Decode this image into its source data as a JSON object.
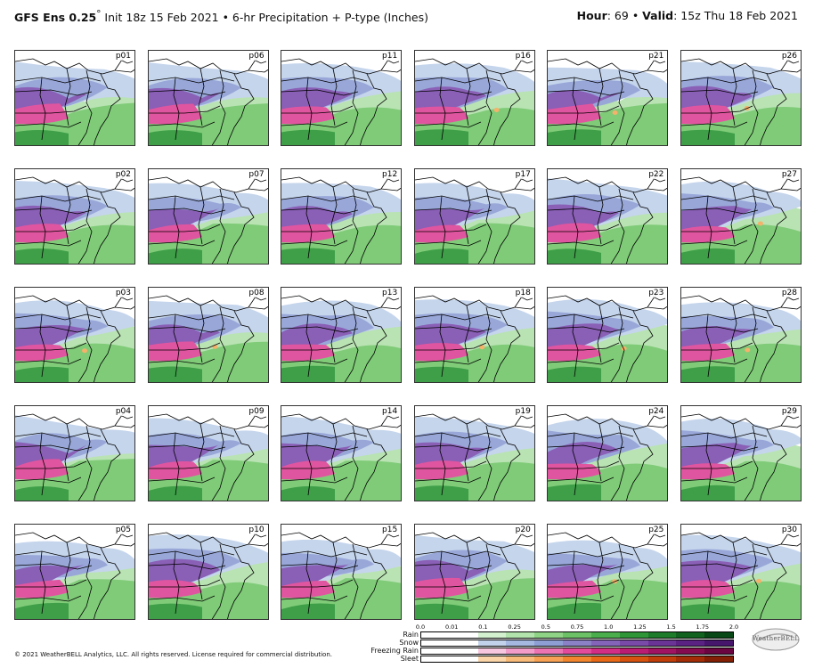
{
  "header": {
    "model": "GFS Ens 0.25",
    "degree": "°",
    "subtitle": " Init 18z 15 Feb 2021 • 6-hr Precipitation + P-type (Inches)",
    "hour_label": "Hour",
    "hour_value": ": 69 • ",
    "valid_label": "Valid",
    "valid_value": ": 15z Thu 18 Feb 2021"
  },
  "members": [
    [
      "p01",
      "p06",
      "p11",
      "p16",
      "p21",
      "p26"
    ],
    [
      "p02",
      "p07",
      "p12",
      "p17",
      "p22",
      "p27"
    ],
    [
      "p03",
      "p08",
      "p13",
      "p18",
      "p23",
      "p28"
    ],
    [
      "p04",
      "p09",
      "p14",
      "p19",
      "p24",
      "p29"
    ],
    [
      "p05",
      "p10",
      "p15",
      "p20",
      "p25",
      "p30"
    ]
  ],
  "legend": {
    "ticks": [
      "0.0",
      "0.01",
      "0.1",
      "0.25",
      "0.5",
      "0.75",
      "1.0",
      "1.25",
      "1.5",
      "1.75",
      "2.0"
    ],
    "rows": [
      {
        "name": "Rain",
        "colors": [
          "#ffffff",
          "#ffffff",
          "#d3f0cf",
          "#b3e3ac",
          "#8fd386",
          "#6cc166",
          "#4aae4c",
          "#2f9638",
          "#1d7c2a",
          "#11611f",
          "#084716"
        ]
      },
      {
        "name": "Snow",
        "colors": [
          "#ffffff",
          "#ffffff",
          "#c2d2ea",
          "#a4b8e0",
          "#8e9fd4",
          "#8a81c6",
          "#8364b8",
          "#7a4aa8",
          "#6a3396",
          "#592283",
          "#46156c"
        ]
      },
      {
        "name": "Freezing Rain",
        "colors": [
          "#ffffff",
          "#ffffff",
          "#f7c6df",
          "#f29dc9",
          "#ec74b3",
          "#e24b9b",
          "#d32e86",
          "#bb1c73",
          "#a01262",
          "#850b51",
          "#6b0541"
        ]
      },
      {
        "name": "Sleet",
        "colors": [
          "#ffffff",
          "#ffffff",
          "#fbd5a8",
          "#f9bb79",
          "#f6a153",
          "#f2862f",
          "#e86a19",
          "#d6520f",
          "#bf3e0a",
          "#a22d07",
          "#821f05"
        ]
      }
    ]
  },
  "copyright": "© 2021 WeatherBELL Analytics, LLC. All rights reserved. License required for commercial distribution.",
  "logo_text": "WeatherBELL",
  "colors": {
    "snow_light": "#c5d5ec",
    "snow_mid": "#98a7d8",
    "snow_deep": "#8a5fb6",
    "frz": "#e0559f",
    "rain_light": "#b9e3b3",
    "rain_mid": "#7fcb78",
    "rain_deep": "#3e9f48",
    "sleet": "#f5b26b"
  }
}
